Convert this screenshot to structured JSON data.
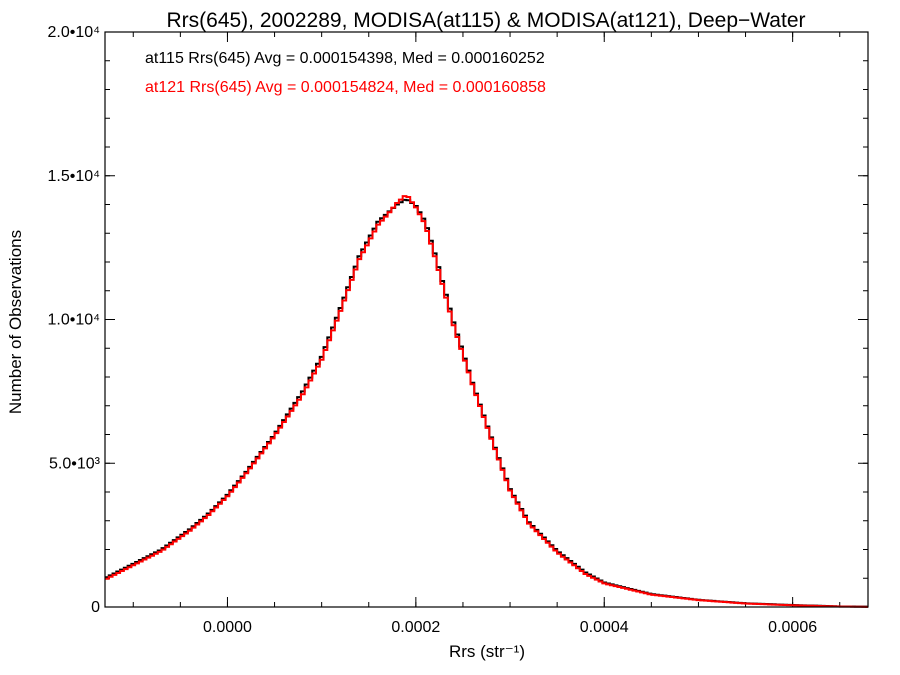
{
  "chart_data": {
    "type": "histogram",
    "title": "Rrs(645), 2002289, MODISA(at115) & MODISA(at121), Deep−Water",
    "xlabel": "Rrs (str⁻¹)",
    "ylabel": "Number of Observations",
    "xlim": [
      -0.00013,
      0.00068
    ],
    "ylim": [
      0,
      20000
    ],
    "x_ticks": [
      {
        "value": 0.0,
        "label": "0.0000"
      },
      {
        "value": 0.0002,
        "label": "0.0002"
      },
      {
        "value": 0.0004,
        "label": "0.0004"
      },
      {
        "value": 0.0006,
        "label": "0.0006"
      }
    ],
    "y_ticks": [
      {
        "value": 0,
        "label": "0"
      },
      {
        "value": 5000,
        "label": "5.0•10³"
      },
      {
        "value": 10000,
        "label": "1.0•10⁴"
      },
      {
        "value": 15000,
        "label": "1.5•10⁴"
      },
      {
        "value": 20000,
        "label": "2.0•10⁴"
      }
    ],
    "x_minor_step": 5e-05,
    "y_minor_step": 1000,
    "grid": false,
    "bin_width": 4e-06,
    "series": [
      {
        "name": "at115",
        "color": "#000000",
        "x": [
          -0.00013,
          -0.0001,
          -7e-05,
          -4e-05,
          -2e-05,
          0.0,
          2e-05,
          5e-05,
          8e-05,
          0.0001,
          0.00012,
          0.00014,
          0.00016,
          0.00017,
          0.00018,
          0.00019,
          0.0002,
          0.00021,
          0.00022,
          0.00024,
          0.00026,
          0.00028,
          0.0003,
          0.00032,
          0.00035,
          0.00038,
          0.0004,
          0.00045,
          0.0005,
          0.00055,
          0.0006,
          0.00065,
          0.00068
        ],
        "y": [
          1000,
          1500,
          2000,
          2700,
          3250,
          3900,
          4700,
          6000,
          7500,
          8700,
          10400,
          12200,
          13400,
          13700,
          14000,
          14200,
          13950,
          13400,
          12300,
          9900,
          7800,
          5900,
          4100,
          2950,
          1950,
          1200,
          850,
          450,
          250,
          130,
          70,
          20,
          10
        ]
      },
      {
        "name": "at121",
        "color": "#ff0000",
        "x": [
          -0.00013,
          -0.0001,
          -7e-05,
          -4e-05,
          -2e-05,
          0.0,
          2e-05,
          5e-05,
          8e-05,
          0.0001,
          0.00012,
          0.00014,
          0.00016,
          0.00017,
          0.00018,
          0.00019,
          0.0002,
          0.00021,
          0.00022,
          0.00024,
          0.00026,
          0.00028,
          0.0003,
          0.00032,
          0.00035,
          0.00038,
          0.0004,
          0.00045,
          0.0005,
          0.00055,
          0.0006,
          0.00065,
          0.00068
        ],
        "y": [
          950,
          1450,
          1950,
          2650,
          3200,
          3850,
          4650,
          5950,
          7400,
          8600,
          10300,
          12100,
          13300,
          13650,
          14050,
          14350,
          13900,
          13300,
          12200,
          9800,
          7750,
          5850,
          4050,
          2900,
          1900,
          1150,
          820,
          430,
          240,
          120,
          60,
          15,
          5
        ]
      }
    ],
    "annotations": [
      {
        "text": "at115 Rrs(645) Avg = 0.000154398, Med = 0.000160252",
        "color": "#000000"
      },
      {
        "text": "at121 Rrs(645) Avg = 0.000154824, Med = 0.000160858",
        "color": "#ff0000"
      }
    ]
  }
}
